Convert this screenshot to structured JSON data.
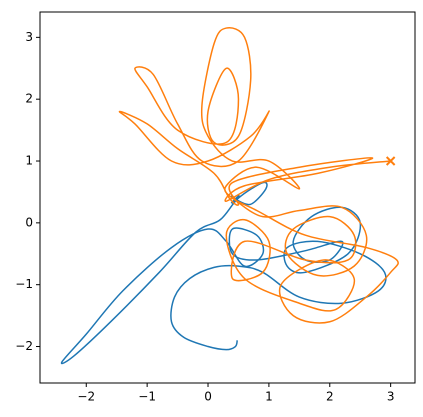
{
  "chart_data": {
    "type": "line",
    "end_marker": "x",
    "xlim": [
      -2.76,
      3.4
    ],
    "ylim": [
      -2.59,
      3.41
    ],
    "xticks": [
      {
        "value": -2,
        "label": "−2"
      },
      {
        "value": -1,
        "label": "−1"
      },
      0,
      1,
      2,
      3
    ],
    "yticks": [
      {
        "value": -2,
        "label": "−2"
      },
      {
        "value": -1,
        "label": "−1"
      },
      0,
      1,
      2,
      3
    ],
    "series": [
      {
        "color": "#1f77b4",
        "x": [
          0.48,
          0.45,
          0.3,
          0,
          -0.4,
          -0.6,
          -0.55,
          -0.3,
          0.1,
          0.5,
          0.9,
          1.5,
          2.2,
          2.8,
          2.9,
          2.5,
          1.8,
          1.3,
          1.3,
          1.6,
          2.3,
          2.5,
          2.2,
          1.7,
          1.4,
          1.6,
          2,
          2.2,
          1.6,
          0.8,
          0.4,
          0.4,
          0.8,
          0.9,
          0.6,
          0.3,
          0,
          -0.6,
          -1.4,
          -2,
          -2.4,
          -2.2,
          -1.6,
          -0.8,
          -0.2,
          0.2,
          0.5,
          0.9,
          0.95,
          0.7,
          0.45
        ],
        "values": [
          -1.9,
          -2,
          -2.05,
          -2,
          -1.85,
          -1.6,
          -1.2,
          -0.9,
          -0.72,
          -0.7,
          -0.8,
          -1.2,
          -1.3,
          -1.1,
          -0.8,
          -0.5,
          -0.3,
          -0.4,
          -0.7,
          -0.8,
          -0.5,
          0,
          0.25,
          0.1,
          -0.3,
          -0.6,
          -0.6,
          -0.3,
          -0.45,
          -0.6,
          -0.5,
          -0.1,
          -0.2,
          -0.5,
          -0.7,
          -0.3,
          -0.1,
          -0.4,
          -1.1,
          -1.8,
          -2.25,
          -2.15,
          -1.6,
          -0.8,
          -0.15,
          0.05,
          0.4,
          0.65,
          0.55,
          0.3,
          0.38
        ]
      },
      {
        "color": "#ff7f0e",
        "x": [
          0.4,
          0.9,
          1.5,
          2.2,
          2.6,
          2.4,
          1.8,
          1.3,
          1.4,
          2,
          2.4,
          2.3,
          1.6,
          0.6,
          0.4,
          0.9,
          1,
          0.6,
          0.3,
          0.6,
          1.5,
          2.1,
          2.4,
          1.9,
          1.2,
          1.4,
          2,
          2.6,
          3,
          3.1,
          2.6,
          1.6,
          0.8,
          0.4,
          0.3,
          0.8,
          1.5,
          1,
          0.4,
          0,
          -0.1,
          0.1,
          0.3,
          0.6,
          0.7,
          0.5,
          0.1,
          0,
          0.3,
          0.5,
          0.3,
          -0.5,
          -1,
          -1.2,
          -0.9,
          -0.5,
          -0.1,
          0.5,
          1,
          0.7,
          0,
          -0.6,
          -1.2,
          -1.45,
          -1,
          -0.5,
          0.1,
          0.35,
          0.5,
          0.4,
          1.5,
          2.7,
          1.8,
          0.6,
          0.3,
          1,
          2,
          3
        ],
        "values": [
          0.4,
          0.1,
          0.2,
          0.25,
          -0.2,
          -0.7,
          -0.85,
          -0.5,
          -0.1,
          0.1,
          -0.2,
          -0.6,
          -0.6,
          -0.3,
          -0.9,
          -0.8,
          -0.3,
          0.05,
          -0.2,
          -0.9,
          -1.3,
          -1.4,
          -0.9,
          -0.6,
          -1,
          -1.5,
          -1.6,
          -1.2,
          -0.8,
          -0.6,
          -0.4,
          -0.2,
          0.2,
          0.4,
          0.6,
          0.9,
          0.55,
          1,
          1,
          1.4,
          1.9,
          2.9,
          3.15,
          3,
          2.3,
          1.4,
          1.3,
          1.8,
          2.5,
          2,
          1.3,
          1.5,
          2.2,
          2.5,
          2.4,
          1.6,
          1,
          1,
          1.8,
          1.4,
          1,
          1,
          1.6,
          1.8,
          1.6,
          1.2,
          0.8,
          0.4,
          0.3,
          0.65,
          0.9,
          1.05,
          0.8,
          0.6,
          0.35,
          0.7,
          0.9,
          1
        ]
      }
    ]
  }
}
